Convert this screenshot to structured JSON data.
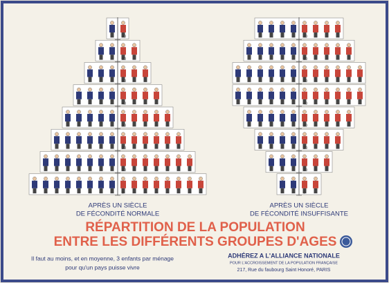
{
  "poster": {
    "title": [
      "RÉPARTITION DE LA POPULATION",
      "ENTRE LES DIFFÉRENTS GROUPES D'AGES"
    ],
    "note": [
      "Il faut au moins, et en moyenne, 3 enfants par ménage",
      "pour qu'un pays puisse vivre"
    ],
    "publisher": [
      "ADHÉREZ A L'ALLIANCE NATIONALE",
      "POUR L'ACCROISSEMENT DE LA POPULATION FRANÇAISE",
      "217, Rue du faubourg Saint Honoré, PARIS"
    ]
  },
  "chart_data": [
    {
      "type": "pictograph-pyramid",
      "title": [
        "APRÈS UN SIÈCLE",
        "DE FÉCONDITÉ NORMALE"
      ],
      "x": [
        0,
        10,
        20,
        30,
        40,
        50,
        60,
        70
      ],
      "ylim": [
        0,
        80
      ],
      "yticks": [
        0,
        10,
        20,
        30,
        40,
        50,
        60,
        70
      ],
      "series": [
        {
          "color": "#2e3a78",
          "values": [
            8,
            7,
            6,
            5,
            4,
            3,
            2,
            1
          ]
        },
        {
          "color": "#c8453a",
          "values": [
            8,
            7,
            6,
            5,
            4,
            3,
            2,
            1
          ]
        }
      ]
    },
    {
      "type": "pictograph-pyramid",
      "title": [
        "APRÈS UN SIÈCLE",
        "DE FÉCONDITÉ INSUFFISANTE"
      ],
      "x": [
        0,
        10,
        20,
        30,
        40,
        50,
        60,
        70
      ],
      "ylim": [
        0,
        80
      ],
      "yticks": [
        0,
        10,
        20,
        30,
        40,
        50,
        60,
        70
      ],
      "series": [
        {
          "color": "#2e3a78",
          "values": [
            2,
            3,
            4,
            5,
            6,
            6,
            5,
            4
          ]
        },
        {
          "color": "#c8453a",
          "values": [
            2,
            3,
            4,
            5,
            6,
            6,
            5,
            4
          ]
        }
      ]
    }
  ]
}
